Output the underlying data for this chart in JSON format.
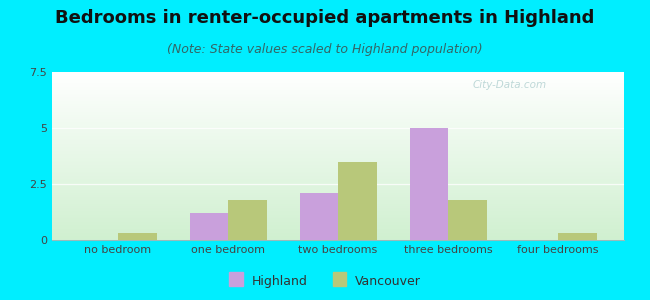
{
  "title": "Bedrooms in renter-occupied apartments in Highland",
  "subtitle": "(Note: State values scaled to Highland population)",
  "categories": [
    "no bedroom",
    "one bedroom",
    "two bedrooms",
    "three bedrooms",
    "four bedrooms"
  ],
  "highland_values": [
    0.0,
    1.2,
    2.1,
    5.0,
    0.0
  ],
  "vancouver_values": [
    0.3,
    1.8,
    3.5,
    1.8,
    0.3
  ],
  "highland_color": "#c9a0dc",
  "vancouver_color": "#b8c87a",
  "background_outer": "#00eeff",
  "ylim": [
    0,
    7.5
  ],
  "yticks": [
    0,
    2.5,
    5,
    7.5
  ],
  "bar_width": 0.35,
  "title_fontsize": 13,
  "subtitle_fontsize": 9,
  "tick_fontsize": 8,
  "legend_fontsize": 9,
  "watermark": "City-Data.com"
}
